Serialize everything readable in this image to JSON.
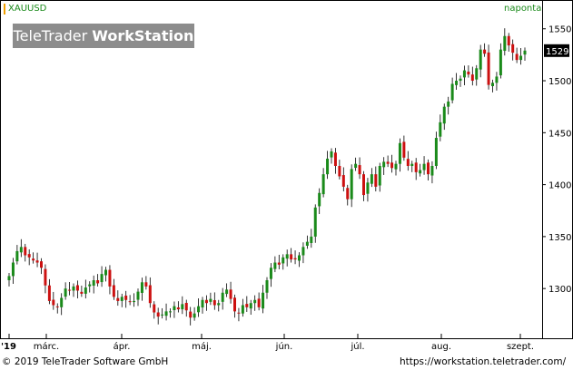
{
  "header": {
    "symbol": "XAUUSD",
    "period": "naponta"
  },
  "logo": {
    "part1": "TeleTrader",
    "part2": "WorkStation"
  },
  "footer": {
    "copyright": "© 2019 TeleTrader Software GmbH",
    "url": "https://workstation.teletrader.com/"
  },
  "colors": {
    "up": "#1a8a1a",
    "down": "#cc1010",
    "symbol_marker": "#f0a000",
    "logo_bg": "#8c8c8c"
  },
  "chart_data": {
    "type": "candlestick",
    "ylim": [
      1260,
      1562
    ],
    "y_ticks": [
      1300,
      1350,
      1400,
      1450,
      1500,
      1550
    ],
    "last_price": "1529",
    "x_labels": [
      "'19",
      "márc.",
      "ápr.",
      "máj.",
      "jún.",
      "júl.",
      "aug.",
      "szept."
    ],
    "grid": false,
    "close": [
      1312,
      1325,
      1336,
      1340,
      1332,
      1330,
      1327,
      1325,
      1320,
      1303,
      1288,
      1284,
      1282,
      1291,
      1300,
      1298,
      1302,
      1298,
      1295,
      1301,
      1304,
      1308,
      1305,
      1314,
      1318,
      1302,
      1292,
      1288,
      1292,
      1289,
      1287,
      1288,
      1297,
      1306,
      1302,
      1286,
      1277,
      1273,
      1275,
      1278,
      1278,
      1283,
      1280,
      1285,
      1279,
      1272,
      1276,
      1283,
      1289,
      1286,
      1290,
      1284,
      1286,
      1296,
      1299,
      1290,
      1278,
      1276,
      1284,
      1282,
      1286,
      1289,
      1282,
      1296,
      1308,
      1320,
      1325,
      1323,
      1330,
      1333,
      1328,
      1328,
      1332,
      1340,
      1345,
      1350,
      1378,
      1392,
      1410,
      1425,
      1432,
      1418,
      1408,
      1398,
      1386,
      1415,
      1420,
      1410,
      1390,
      1402,
      1410,
      1398,
      1418,
      1422,
      1420,
      1416,
      1420,
      1440,
      1426,
      1418,
      1420,
      1412,
      1414,
      1420,
      1410,
      1418,
      1445,
      1460,
      1475,
      1480,
      1497,
      1500,
      1502,
      1510,
      1506,
      1500,
      1512,
      1530,
      1526,
      1496,
      1498,
      1504,
      1530,
      1543,
      1534,
      1527,
      1520,
      1524,
      1529
    ]
  }
}
